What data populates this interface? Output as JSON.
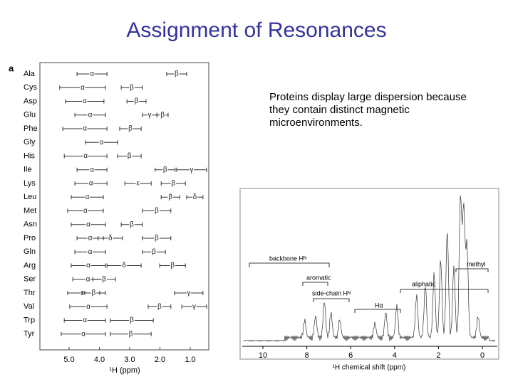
{
  "header": {
    "title": "Assignment of Resonances"
  },
  "caption": "Proteins display large dispersion because they contain distinct magnetic microenvironments.",
  "left_figure": {
    "panel_label": "a",
    "axis_title": "¹H (ppm)",
    "xticks": [
      {
        "value": 5,
        "label": "5.0"
      },
      {
        "value": 4,
        "label": "4.0"
      },
      {
        "value": 3,
        "label": "3.0"
      },
      {
        "value": 2,
        "label": "2.0"
      },
      {
        "value": 1,
        "label": "1.0"
      }
    ],
    "residues": [
      {
        "name": "Ala",
        "ranges": [
          {
            "label": "α",
            "from": 4.74,
            "to": 3.75
          },
          {
            "label": "β",
            "from": 1.78,
            "to": 1.12
          }
        ]
      },
      {
        "name": "Cys",
        "ranges": [
          {
            "label": "α",
            "from": 5.31,
            "to": 3.8
          },
          {
            "label": "β",
            "from": 3.28,
            "to": 2.58
          }
        ]
      },
      {
        "name": "Asp",
        "ranges": [
          {
            "label": "α",
            "from": 5.12,
            "to": 3.85
          },
          {
            "label": "β",
            "from": 3.09,
            "to": 2.46
          }
        ]
      },
      {
        "name": "Glu",
        "ranges": [
          {
            "label": "α",
            "from": 4.81,
            "to": 3.8
          },
          {
            "label": "γ",
            "from": 2.58,
            "to": 2.1
          },
          {
            "label": "β",
            "from": 2.1,
            "to": 1.73
          }
        ]
      },
      {
        "name": "Phe",
        "ranges": [
          {
            "label": "α",
            "from": 5.21,
            "to": 3.75
          },
          {
            "label": "β",
            "from": 3.33,
            "to": 2.62
          }
        ]
      },
      {
        "name": "Gly",
        "ranges": [
          {
            "label": "α",
            "from": 4.46,
            "to": 3.4
          }
        ]
      },
      {
        "name": "His",
        "ranges": [
          {
            "label": "α",
            "from": 5.16,
            "to": 3.75
          },
          {
            "label": "β",
            "from": 3.4,
            "to": 2.62
          }
        ]
      },
      {
        "name": "Ile",
        "ranges": [
          {
            "label": "α",
            "from": 4.74,
            "to": 3.75
          },
          {
            "label": "β",
            "from": 2.16,
            "to": 1.5
          },
          {
            "label": "γ",
            "from": 1.45,
            "to": 0.46
          }
        ]
      },
      {
        "name": "Lys",
        "ranges": [
          {
            "label": "α",
            "from": 4.81,
            "to": 3.75
          },
          {
            "label": "ε",
            "from": 3.16,
            "to": 2.29
          },
          {
            "label": "β",
            "from": 1.96,
            "to": 1.16
          }
        ]
      },
      {
        "name": "Leu",
        "ranges": [
          {
            "label": "α",
            "from": 4.93,
            "to": 3.87
          },
          {
            "label": "β",
            "from": 1.96,
            "to": 1.35
          },
          {
            "label": "δ",
            "from": 1.12,
            "to": 0.58
          }
        ]
      },
      {
        "name": "Met",
        "ranges": [
          {
            "label": "α",
            "from": 5.05,
            "to": 3.87
          },
          {
            "label": "β",
            "from": 2.58,
            "to": 1.64
          }
        ]
      },
      {
        "name": "Asn",
        "ranges": [
          {
            "label": "α",
            "from": 4.93,
            "to": 3.8
          },
          {
            "label": "β",
            "from": 3.28,
            "to": 2.58
          }
        ]
      },
      {
        "name": "Pro",
        "ranges": [
          {
            "label": "α",
            "from": 4.74,
            "to": 3.87
          },
          {
            "label": "δ",
            "from": 4.04,
            "to": 3.24
          },
          {
            "label": "β",
            "from": 2.58,
            "to": 1.64
          }
        ]
      },
      {
        "name": "Gln",
        "ranges": [
          {
            "label": "α",
            "from": 4.81,
            "to": 3.8
          },
          {
            "label": "β",
            "from": 2.58,
            "to": 1.82
          }
        ]
      },
      {
        "name": "Arg",
        "ranges": [
          {
            "label": "α",
            "from": 4.93,
            "to": 3.8
          },
          {
            "label": "δ",
            "from": 3.75,
            "to": 2.62
          },
          {
            "label": "β",
            "from": 2.01,
            "to": 1.16
          }
        ]
      },
      {
        "name": "Ser",
        "ranges": [
          {
            "label": "α",
            "from": 4.88,
            "to": 3.87
          },
          {
            "label": "β",
            "from": 4.22,
            "to": 3.47
          }
        ]
      },
      {
        "name": "Thr",
        "ranges": [
          {
            "label": "α",
            "from": 5.05,
            "to": 3.99
          },
          {
            "label": "β",
            "from": 4.58,
            "to": 3.8
          },
          {
            "label": "γ",
            "from": 1.52,
            "to": 0.58
          }
        ]
      },
      {
        "name": "Val",
        "ranges": [
          {
            "label": "α",
            "from": 4.98,
            "to": 3.75
          },
          {
            "label": "β",
            "from": 2.39,
            "to": 1.64
          },
          {
            "label": "γ",
            "from": 1.28,
            "to": 0.46
          }
        ]
      },
      {
        "name": "Trp",
        "ranges": [
          {
            "label": "α",
            "from": 5.16,
            "to": 3.8
          },
          {
            "label": "β",
            "from": 3.64,
            "to": 2.22
          }
        ]
      },
      {
        "name": "Tyr",
        "ranges": [
          {
            "label": "α",
            "from": 5.26,
            "to": 3.8
          },
          {
            "label": "β",
            "from": 3.64,
            "to": 2.29
          }
        ]
      }
    ]
  },
  "spectrum": {
    "axis_title": "¹H chemical shift (ppm)",
    "xticks": [
      10,
      8,
      6,
      4,
      2,
      0
    ],
    "labels": {
      "backbone": "backbone Hᴺ",
      "aromatic": "aromatic",
      "side_chain": "side-chain Hᴺ",
      "h_alpha": "Hα",
      "aliphatic": "aliphatic",
      "methyl": "methyl"
    }
  }
}
